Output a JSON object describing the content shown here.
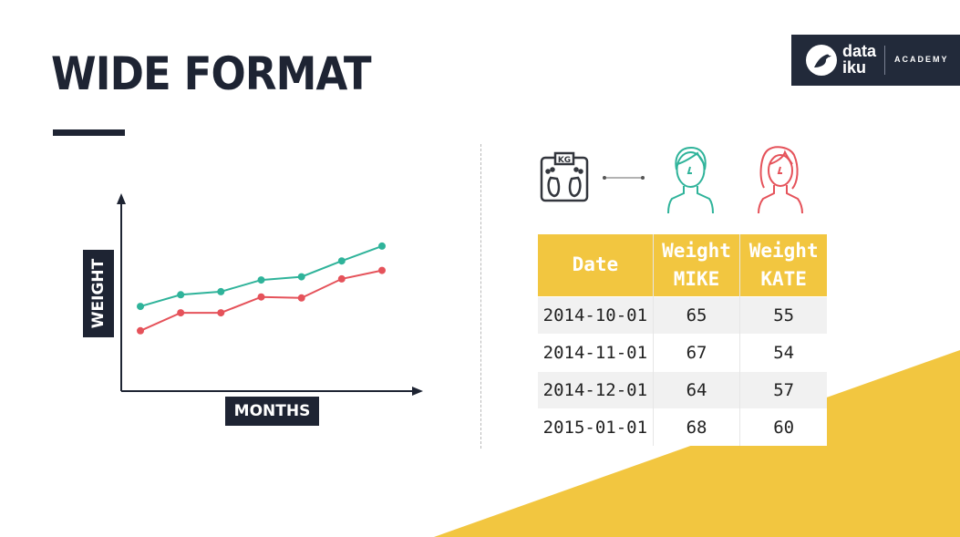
{
  "title": "WIDE FORMAT",
  "logo": {
    "word_top": "data",
    "word_bottom": "iku",
    "subtitle": "ACADEMY"
  },
  "colors": {
    "navy": "#1e2433",
    "teal": "#2fb39a",
    "red": "#e5525a",
    "yellow": "#f2c640"
  },
  "chart_data": {
    "type": "line",
    "xlabel": "MONTHS",
    "ylabel": "WEIGHT",
    "x": [
      1,
      2,
      3,
      4,
      5,
      6,
      7
    ],
    "series": [
      {
        "color": "#2fb39a",
        "values": [
          63.0,
          64.1,
          64.4,
          65.5,
          65.8,
          67.3,
          68.7
        ]
      },
      {
        "color": "#e5525a",
        "values": [
          60.7,
          62.4,
          62.4,
          63.9,
          63.8,
          65.6,
          66.4
        ]
      }
    ],
    "ylim": [
      55,
      73
    ],
    "grid": false
  },
  "icons": {
    "scale": "scale-kg-icon",
    "mike": "person-male-icon",
    "kate": "person-female-icon",
    "scale_text": "KG"
  },
  "table": {
    "headers": [
      {
        "line1": "Date",
        "line2": ""
      },
      {
        "line1": "Weight",
        "line2": "MIKE"
      },
      {
        "line1": "Weight",
        "line2": "KATE"
      }
    ],
    "rows": [
      [
        "2014-10-01",
        "65",
        "55"
      ],
      [
        "2014-11-01",
        "67",
        "54"
      ],
      [
        "2014-12-01",
        "64",
        "57"
      ],
      [
        "2015-01-01",
        "68",
        "60"
      ]
    ]
  }
}
